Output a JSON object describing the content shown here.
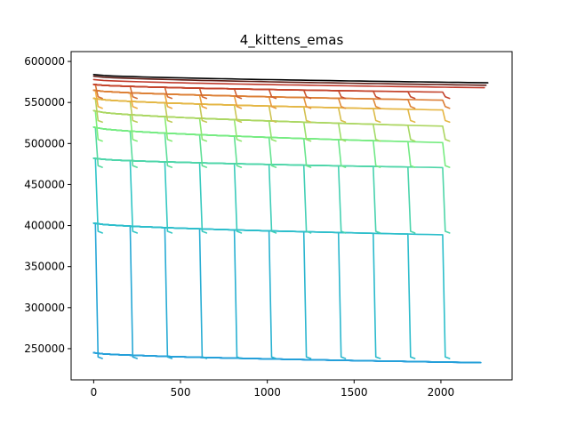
{
  "chart_data": {
    "type": "line",
    "title": "4_kittens_emas",
    "xlabel": "",
    "ylabel": "",
    "xlim": [
      -130,
      2410
    ],
    "ylim": [
      212000,
      612000
    ],
    "xticks": [
      0,
      500,
      1000,
      1500,
      2000
    ],
    "yticks": [
      250000,
      300000,
      350000,
      400000,
      450000,
      500000,
      550000,
      600000
    ],
    "xtick_labels": [
      "0",
      "500",
      "1000",
      "1500",
      "2000"
    ],
    "ytick_labels": [
      "250000",
      "300000",
      "350000",
      "400000",
      "450000",
      "500000",
      "550000",
      "600000"
    ],
    "grid": false,
    "legend": "none",
    "colormap": "turbo",
    "color_range": [
      "#1e88e5",
      "#2ec4c8",
      "#7ef07a",
      "#f0b040",
      "#c0392b",
      "#000000"
    ],
    "bands": [
      {
        "start": 245000,
        "mid": 238000,
        "end": 233000,
        "drop_to": null,
        "step_x": 200,
        "count": 11,
        "x_end": 2230
      },
      {
        "start": 403000,
        "mid": 392000,
        "end": 388000,
        "drop_to": 240000,
        "step_x": 200,
        "count": 11,
        "x_end": 2200
      },
      {
        "start": 482000,
        "mid": 472000,
        "end": 470000,
        "drop_to": 393000,
        "step_x": 200,
        "count": 11,
        "x_end": 2210
      },
      {
        "start": 520000,
        "mid": 505000,
        "end": 500000,
        "drop_to": 473000,
        "step_x": 200,
        "count": 11,
        "x_end": 2210
      },
      {
        "start": 540000,
        "mid": 525000,
        "end": 520000,
        "drop_to": 505000,
        "step_x": 200,
        "count": 11,
        "x_end": 2210
      },
      {
        "start": 555000,
        "mid": 545000,
        "end": 540000,
        "drop_to": 528000,
        "step_x": 200,
        "count": 11,
        "x_end": 2220
      },
      {
        "start": 565000,
        "mid": 557000,
        "end": 552000,
        "drop_to": 545000,
        "step_x": 200,
        "count": 11,
        "x_end": 2230
      },
      {
        "start": 572000,
        "mid": 566000,
        "end": 562000,
        "drop_to": 557000,
        "step_x": 200,
        "count": 11,
        "x_end": 2240
      },
      {
        "start": 578000,
        "mid": 572000,
        "end": 568000,
        "drop_to": null,
        "step_x": 200,
        "count": 1,
        "x_end": 2250
      },
      {
        "start": 582000,
        "mid": 577000,
        "end": 571000,
        "drop_to": null,
        "step_x": 200,
        "count": 1,
        "x_end": 2260
      },
      {
        "start": 584000,
        "mid": 579000,
        "end": 574000,
        "drop_to": null,
        "step_x": 200,
        "count": 1,
        "x_end": 2270
      }
    ]
  }
}
